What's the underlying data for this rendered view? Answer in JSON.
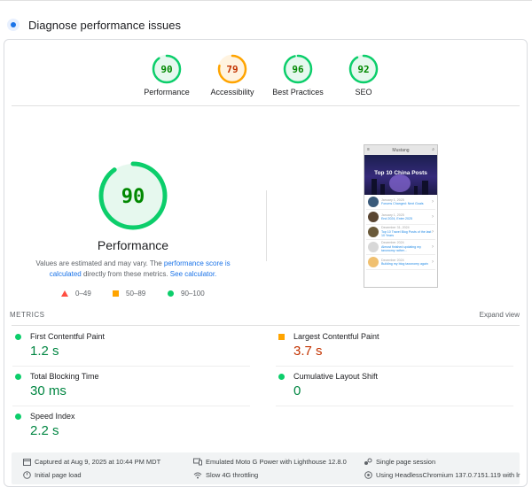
{
  "header": {
    "title": "Diagnose performance issues"
  },
  "colors": {
    "pass": "#0cce6b",
    "average": "#ffa400",
    "fail": "#ff4e42",
    "link": "#1a73e8"
  },
  "categories": [
    {
      "label": "Performance",
      "score": "90",
      "score_value": 90,
      "rating": "pass"
    },
    {
      "label": "Accessibility",
      "score": "79",
      "score_value": 79,
      "rating": "average"
    },
    {
      "label": "Best Practices",
      "score": "96",
      "score_value": 96,
      "rating": "pass"
    },
    {
      "label": "SEO",
      "score": "92",
      "score_value": 92,
      "rating": "pass"
    }
  ],
  "main": {
    "score": "90",
    "score_value": 90,
    "title": "Performance",
    "note_prefix": "Values are estimated and may vary. The ",
    "note_link1": "performance score is calculated",
    "note_middle": " directly from these metrics. ",
    "note_link2": "See calculator.",
    "legend": [
      "0–49",
      "50–89",
      "90–100"
    ]
  },
  "screenshot": {
    "site_title": "Mustang",
    "hero_title": "Top 10 China Posts",
    "items": [
      {
        "meta": "January 1, 2025",
        "title": "Forums Changed: Next Goals",
        "thumb": "#3a5a7a"
      },
      {
        "meta": "January 1, 2025",
        "title": "End 2024, Enter 2025",
        "thumb": "#5a4632"
      },
      {
        "meta": "December 31, 2024",
        "title": "Top 10 Travel Blog Posts of the last 10 Years",
        "thumb": "#6a5a3a"
      },
      {
        "meta": "December 2024",
        "title": "Almost finished updating my taxonomy rather...",
        "thumb": "#d8d8d8"
      },
      {
        "meta": "December 2024",
        "title": "Building my blog taxonomy again",
        "thumb": "#f0c070"
      }
    ]
  },
  "metrics": {
    "label": "METRICS",
    "expand_label": "Expand view",
    "items": [
      {
        "name": "First Contentful Paint",
        "value": "1.2 s",
        "rating": "pass"
      },
      {
        "name": "Largest Contentful Paint",
        "value": "3.7 s",
        "rating": "average"
      },
      {
        "name": "Total Blocking Time",
        "value": "30 ms",
        "rating": "pass"
      },
      {
        "name": "Cumulative Layout Shift",
        "value": "0",
        "rating": "pass"
      },
      {
        "name": "Speed Index",
        "value": "2.2 s",
        "rating": "pass"
      }
    ]
  },
  "footer": {
    "captured": "Captured at Aug 9, 2025 at 10:44 PM MDT",
    "page_load": "Initial page load",
    "device": "Emulated Moto G Power with Lighthouse 12.8.0",
    "throttling": "Slow 4G throttling",
    "session": "Single page session",
    "browser": "Using HeadlessChromium 137.0.7151.119 with lr"
  }
}
